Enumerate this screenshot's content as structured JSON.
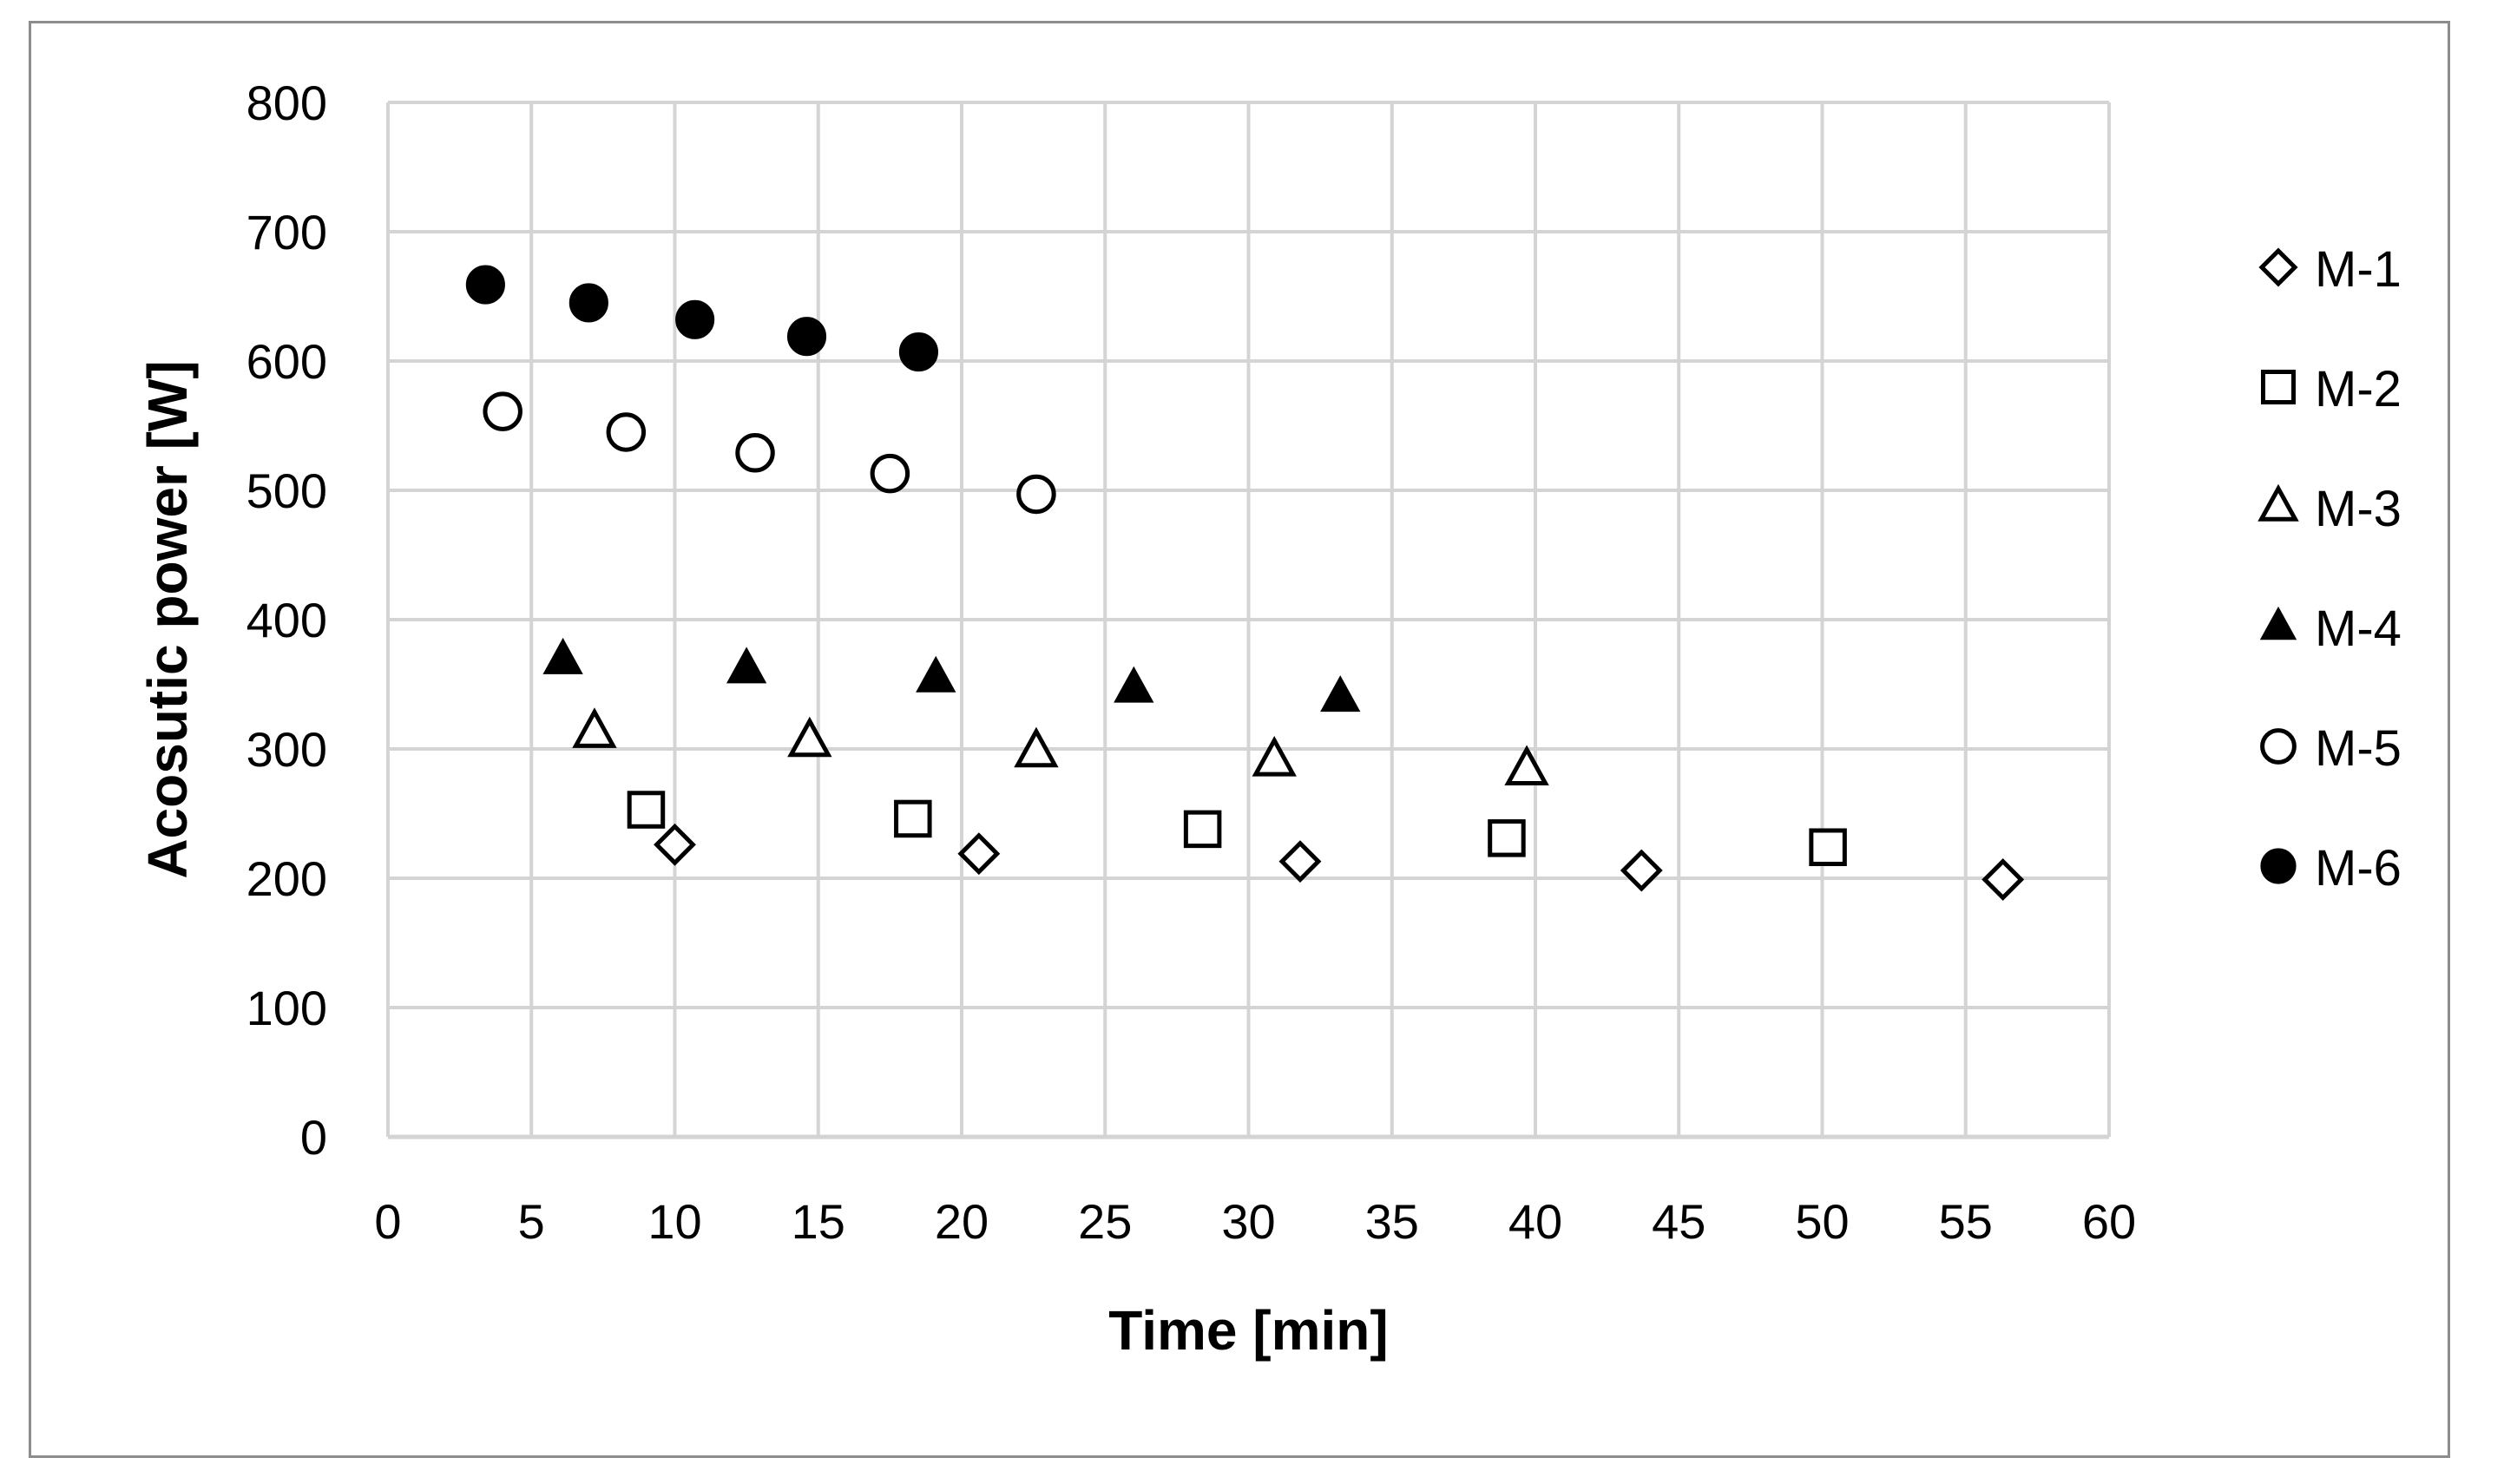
{
  "chart_data": {
    "type": "scatter",
    "title": "",
    "xlabel": "Time [min]",
    "ylabel": "Acosutic power [W]",
    "xlim": [
      0,
      60
    ],
    "ylim": [
      0,
      800
    ],
    "xticks": [
      0,
      5,
      10,
      15,
      20,
      25,
      30,
      35,
      40,
      45,
      50,
      55,
      60
    ],
    "yticks": [
      0,
      100,
      200,
      300,
      400,
      500,
      600,
      700,
      800
    ],
    "grid": true,
    "legend_position": "right",
    "series": [
      {
        "name": "M-1",
        "marker": "diamond-open",
        "points": [
          [
            10.0,
            226
          ],
          [
            20.6,
            219
          ],
          [
            31.8,
            213
          ],
          [
            43.7,
            206
          ],
          [
            56.3,
            199
          ]
        ]
      },
      {
        "name": "M-2",
        "marker": "square-open",
        "points": [
          [
            9.0,
            253
          ],
          [
            18.3,
            246
          ],
          [
            28.4,
            238
          ],
          [
            39.0,
            231
          ],
          [
            50.2,
            224
          ]
        ]
      },
      {
        "name": "M-3",
        "marker": "triangle-open",
        "points": [
          [
            7.2,
            313
          ],
          [
            14.7,
            306
          ],
          [
            22.6,
            298
          ],
          [
            30.9,
            291
          ],
          [
            39.7,
            284
          ]
        ]
      },
      {
        "name": "M-4",
        "marker": "triangle-filled",
        "points": [
          [
            6.1,
            369
          ],
          [
            12.5,
            362
          ],
          [
            19.1,
            355
          ],
          [
            26.0,
            347
          ],
          [
            33.2,
            340
          ]
        ]
      },
      {
        "name": "M-5",
        "marker": "circle-open",
        "points": [
          [
            4.0,
            561
          ],
          [
            8.3,
            545
          ],
          [
            12.8,
            529
          ],
          [
            17.5,
            513
          ],
          [
            22.6,
            497
          ]
        ]
      },
      {
        "name": "M-6",
        "marker": "circle-filled",
        "points": [
          [
            3.4,
            659
          ],
          [
            7.0,
            645
          ],
          [
            10.7,
            632
          ],
          [
            14.6,
            619
          ],
          [
            18.5,
            607
          ]
        ]
      }
    ],
    "colors": {
      "marker": "#000000",
      "grid": "#d4d4d4",
      "frame": "#8c8c8c"
    }
  }
}
